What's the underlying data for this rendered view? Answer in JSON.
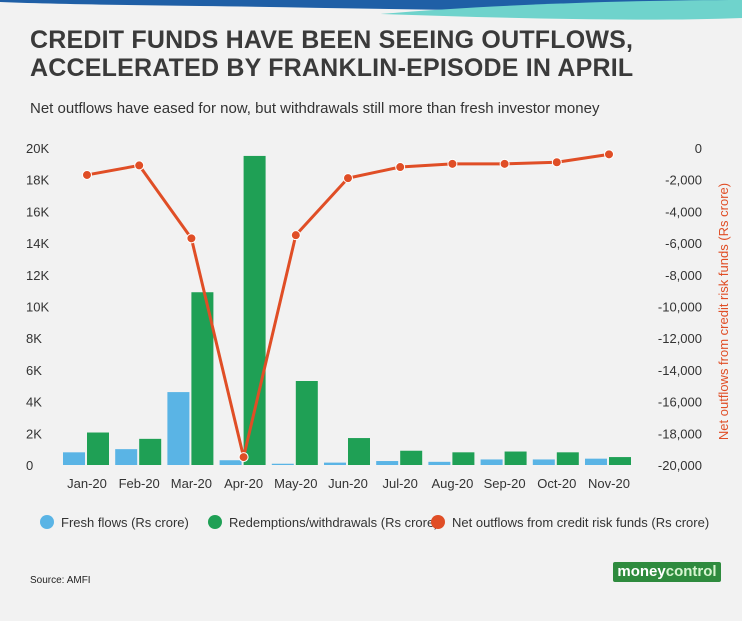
{
  "header": {
    "title_line1": "CREDIT FUNDS HAVE BEEN SEEING OUTFLOWS,",
    "title_line2": "ACCELERATED BY FRANKLIN-EPISODE IN APRIL",
    "subtitle": "Net outflows have eased for now, but withdrawals still more than fresh investor money"
  },
  "footer": {
    "source": "Source: AMFI",
    "logo_part1": "money",
    "logo_part2": "control"
  },
  "colors": {
    "fresh": "#5ab4e5",
    "redemptions": "#1fa055",
    "net": "#e04e26",
    "band_blue": "#1f5fa6",
    "band_teal": "#6fd3cc"
  },
  "chart_data": {
    "type": "bar",
    "categories": [
      "Jan-20",
      "Feb-20",
      "Mar-20",
      "Apr-20",
      "May-20",
      "Jun-20",
      "Jul-20",
      "Aug-20",
      "Sep-20",
      "Oct-20",
      "Nov-20"
    ],
    "series": [
      {
        "name": "Fresh flows (Rs crore)",
        "type": "bar",
        "axis": "left",
        "values": [
          800,
          1000,
          4600,
          300,
          80,
          150,
          250,
          200,
          350,
          350,
          400
        ]
      },
      {
        "name": "Redemptions/withdrawals (Rs crore)",
        "type": "bar",
        "axis": "left",
        "values": [
          2050,
          1650,
          10900,
          19500,
          5300,
          1700,
          900,
          800,
          850,
          800,
          500
        ]
      },
      {
        "name": "Net outflows from credit risk funds (Rs crore)",
        "type": "line",
        "axis": "right",
        "values": [
          -1700,
          -1100,
          -5700,
          -19500,
          -5500,
          -1900,
          -1200,
          -1000,
          -1000,
          -900,
          -400
        ]
      }
    ],
    "y_left": {
      "ylim": [
        0,
        20000
      ],
      "ticks": [
        0,
        2000,
        4000,
        6000,
        8000,
        10000,
        12000,
        14000,
        16000,
        18000,
        20000
      ],
      "tick_labels": [
        "0",
        "2K",
        "4K",
        "6K",
        "8K",
        "10K",
        "12K",
        "14K",
        "16K",
        "18K",
        "20K"
      ]
    },
    "y_right": {
      "label": "Net outflows from credit risk funds (Rs  crore)",
      "ylim": [
        -20000,
        0
      ],
      "ticks": [
        0,
        -2000,
        -4000,
        -6000,
        -8000,
        -10000,
        -12000,
        -14000,
        -16000,
        -18000,
        -20000
      ],
      "tick_labels": [
        "0",
        "-2,000",
        "-4,000",
        "-6,000",
        "-8,000",
        "-10,000",
        "-12,000",
        "-14,000",
        "-16,000",
        "-18,000",
        "-20,000"
      ]
    },
    "grid": false,
    "legend_position": "bottom"
  }
}
